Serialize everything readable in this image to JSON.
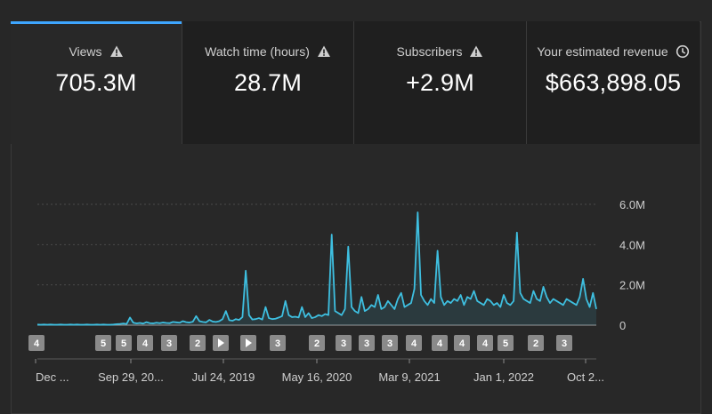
{
  "tabs": [
    {
      "label": "Views",
      "value": "705.3M",
      "icon": "warning-icon",
      "active": true
    },
    {
      "label": "Watch time (hours)",
      "value": "28.7M",
      "icon": "warning-icon",
      "active": false
    },
    {
      "label": "Subscribers",
      "value": "+2.9M",
      "icon": "warning-icon",
      "active": false
    },
    {
      "label": "Your estimated revenue",
      "value": "$663,898.05",
      "icon": "clock-icon",
      "active": false
    }
  ],
  "colors": {
    "accent": "#3ea6ff",
    "line": "#3ebfe0",
    "background": "#282828",
    "inactive_tab": "#1f1f1f",
    "marker": "#8a8a8a"
  },
  "chart_data": {
    "type": "line",
    "ylim": [
      0,
      6000000
    ],
    "y_ticks": [
      "6.0M",
      "4.0M",
      "2.0M",
      "0"
    ],
    "x_tick_labels": [
      "Dec ...",
      "Sep 29, 20...",
      "Jul 24, 2019",
      "May 16, 2020",
      "Mar 9, 2021",
      "Jan 1, 2022",
      "Oct 2..."
    ],
    "markers": [
      "4",
      "5",
      "5",
      "4",
      "3",
      "2",
      "▶",
      "▶",
      "3",
      "2",
      "3",
      "3",
      "3",
      "4",
      "4",
      "4",
      "4",
      "5",
      "2",
      "3"
    ],
    "series": [
      {
        "values": [
          30000,
          20000,
          30000,
          20000,
          30000,
          20000,
          20000,
          30000,
          20000,
          20000,
          30000,
          20000,
          30000,
          20000,
          20000,
          30000,
          20000,
          20000,
          30000,
          20000,
          30000,
          20000,
          20000,
          30000,
          50000,
          60000,
          80000,
          60000,
          380000,
          120000,
          90000,
          110000,
          80000,
          150000,
          100000,
          90000,
          120000,
          100000,
          130000,
          110000,
          100000,
          160000,
          140000,
          120000,
          200000,
          150000,
          130000,
          170000,
          450000,
          200000,
          160000,
          140000,
          260000,
          180000,
          160000,
          200000,
          300000,
          700000,
          250000,
          220000,
          300000,
          260000,
          400000,
          2700000,
          500000,
          280000,
          300000,
          350000,
          280000,
          900000,
          350000,
          300000,
          320000,
          380000,
          450000,
          1200000,
          500000,
          400000,
          420000,
          380000,
          900000,
          400000,
          600000,
          350000,
          400000,
          500000,
          450000,
          550000,
          500000,
          4500000,
          700000,
          600000,
          500000,
          800000,
          3900000,
          900000,
          700000,
          600000,
          1400000,
          700000,
          800000,
          1000000,
          900000,
          1500000,
          800000,
          900000,
          1200000,
          1000000,
          800000,
          1300000,
          1600000,
          900000,
          1000000,
          1100000,
          1800000,
          5600000,
          1500000,
          1200000,
          1000000,
          1300000,
          1100000,
          3700000,
          1400000,
          1000000,
          1200000,
          1100000,
          1300000,
          1200000,
          1500000,
          1000000,
          1400000,
          1300000,
          1700000,
          1200000,
          1100000,
          1000000,
          1300000,
          1200000,
          1000000,
          1100000,
          900000,
          1500000,
          1100000,
          1000000,
          1200000,
          4600000,
          1600000,
          1300000,
          1200000,
          1100000,
          1700000,
          1300000,
          1200000,
          1900000,
          1400000,
          1100000,
          1300000,
          1200000,
          1100000,
          1000000,
          1300000,
          1200000,
          1100000,
          1000000,
          1400000,
          2300000,
          1300000,
          900000,
          1600000,
          800000
        ]
      }
    ]
  }
}
